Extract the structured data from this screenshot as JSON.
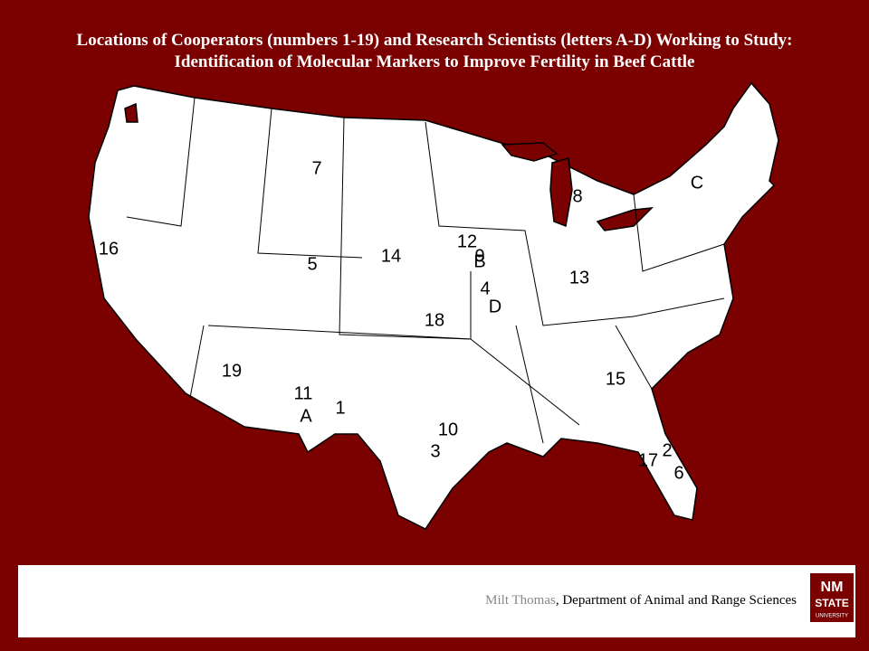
{
  "header": {
    "title_line1": "Locations of Cooperators (numbers 1-19) and Research Scientists (letters A-D) Working to Study:",
    "title_line2": "Identification of Molecular Markers to Improve Fertility in Beef Cattle"
  },
  "map": {
    "markers": [
      "7",
      "C",
      "8",
      "16",
      "12",
      "9",
      "B",
      "14",
      "5",
      "13",
      "4",
      "D",
      "18",
      "19",
      "15",
      "11",
      "1",
      "A",
      "10",
      "3",
      "2",
      "17",
      "6"
    ]
  },
  "footer": {
    "author": "Milt Thomas",
    "affiliation": ", Department of Animal and Range Sciences",
    "logo": {
      "line1": "NM",
      "line2": "STATE",
      "line3": "UNIVERSITY"
    }
  }
}
